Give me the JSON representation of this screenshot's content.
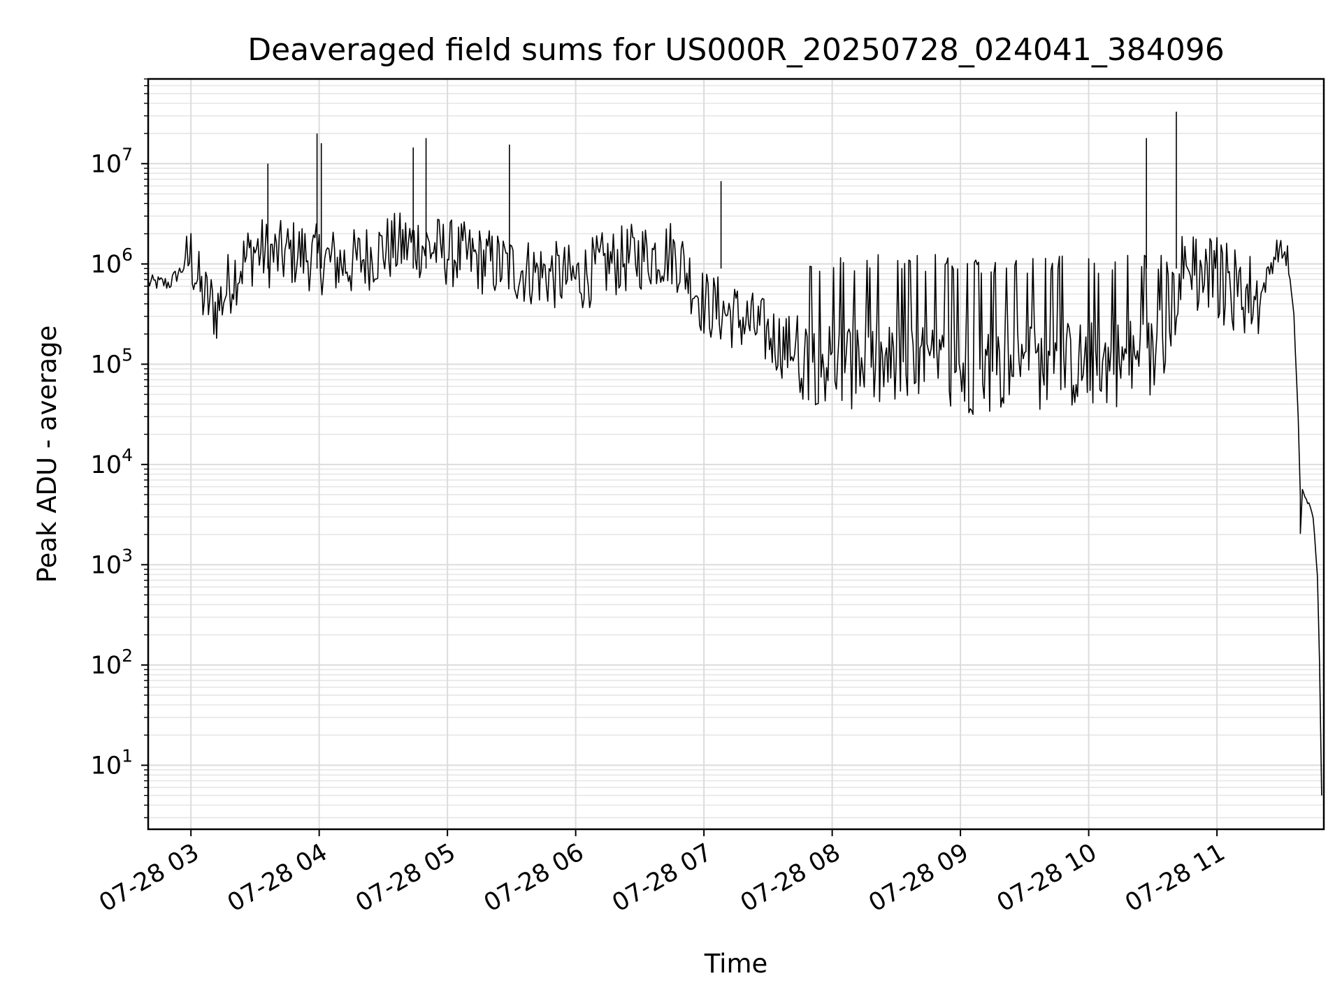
{
  "chart_data": {
    "type": "line",
    "title": "Deaveraged field sums for US000R_20250728_024041_384096",
    "xlabel": "Time",
    "ylabel": "Peak ADU - average",
    "x_range": [
      "2025-07-28 02:40",
      "2025-07-28 11:50"
    ],
    "y_scale": "log",
    "ylim": [
      2.3,
      70000000
    ],
    "grid": true,
    "line_color": "#000000",
    "x_ticks": [
      {
        "value": "2025-07-28 03:00",
        "label": "07-28 03"
      },
      {
        "value": "2025-07-28 04:00",
        "label": "07-28 04"
      },
      {
        "value": "2025-07-28 05:00",
        "label": "07-28 05"
      },
      {
        "value": "2025-07-28 06:00",
        "label": "07-28 06"
      },
      {
        "value": "2025-07-28 07:00",
        "label": "07-28 07"
      },
      {
        "value": "2025-07-28 08:00",
        "label": "07-28 08"
      },
      {
        "value": "2025-07-28 09:00",
        "label": "07-28 09"
      },
      {
        "value": "2025-07-28 10:00",
        "label": "07-28 10"
      },
      {
        "value": "2025-07-28 11:00",
        "label": "07-28 11"
      }
    ],
    "y_ticks": [
      {
        "value": 10,
        "base": "10",
        "exp": "1"
      },
      {
        "value": 100,
        "base": "10",
        "exp": "2"
      },
      {
        "value": 1000,
        "base": "10",
        "exp": "3"
      },
      {
        "value": 10000,
        "base": "10",
        "exp": "4"
      },
      {
        "value": 100000,
        "base": "10",
        "exp": "5"
      },
      {
        "value": 1000000,
        "base": "10",
        "exp": "6"
      },
      {
        "value": 10000000,
        "base": "10",
        "exp": "7"
      }
    ],
    "series": [
      {
        "points": [
          [
            "2025-07-28 02:40",
            650000
          ],
          [
            "2025-07-28 02:50",
            640000
          ],
          [
            "2025-07-28 02:56",
            900000
          ],
          [
            "2025-07-28 03:00",
            1200000
          ],
          [
            "2025-07-28 03:05",
            500000
          ],
          [
            "2025-07-28 03:12",
            350000
          ],
          [
            "2025-07-28 03:20",
            800000
          ],
          [
            "2025-07-28 03:30",
            1400000
          ],
          [
            "2025-07-28 03:40",
            1200000
          ],
          [
            "2025-07-28 03:50",
            1300000
          ],
          [
            "2025-07-28 04:00",
            1100000
          ],
          [
            "2025-07-28 04:15",
            1000000
          ],
          [
            "2025-07-28 04:30",
            1400000
          ],
          [
            "2025-07-28 04:45",
            1600000
          ],
          [
            "2025-07-28 05:00",
            1300000
          ],
          [
            "2025-07-28 05:15",
            1100000
          ],
          [
            "2025-07-28 05:30",
            900000
          ],
          [
            "2025-07-28 05:45",
            800000
          ],
          [
            "2025-07-28 06:00",
            700000
          ],
          [
            "2025-07-28 06:15",
            1000000
          ],
          [
            "2025-07-28 06:30",
            1200000
          ],
          [
            "2025-07-28 06:45",
            1300000
          ],
          [
            "2025-07-28 06:50",
            1000000
          ],
          [
            "2025-07-28 07:00",
            400000
          ],
          [
            "2025-07-28 07:15",
            300000
          ],
          [
            "2025-07-28 07:30",
            200000
          ],
          [
            "2025-07-28 07:45",
            120000
          ],
          [
            "2025-07-28 08:00",
            100000
          ],
          [
            "2025-07-28 08:30",
            90000
          ],
          [
            "2025-07-28 09:00",
            85000
          ],
          [
            "2025-07-28 09:30",
            95000
          ],
          [
            "2025-07-28 10:00",
            100000
          ],
          [
            "2025-07-28 10:30",
            110000
          ],
          [
            "2025-07-28 10:45",
            900000
          ],
          [
            "2025-07-28 11:00",
            700000
          ],
          [
            "2025-07-28 11:20",
            450000
          ],
          [
            "2025-07-28 11:28",
            1400000
          ],
          [
            "2025-07-28 11:33",
            1200000
          ],
          [
            "2025-07-28 11:36",
            300000
          ],
          [
            "2025-07-28 11:38",
            30000
          ],
          [
            "2025-07-28 11:39",
            5000
          ],
          [
            "2025-07-28 11:39",
            2000
          ],
          [
            "2025-07-28 11:40",
            5500
          ],
          [
            "2025-07-28 11:43",
            4000
          ],
          [
            "2025-07-28 11:45",
            3000
          ],
          [
            "2025-07-28 11:47",
            800
          ],
          [
            "2025-07-28 11:48",
            100
          ],
          [
            "2025-07-28 11:49",
            5
          ]
        ]
      }
    ],
    "spikes": [
      [
        "2025-07-28 03:36",
        10000000
      ],
      [
        "2025-07-28 03:59",
        20000000
      ],
      [
        "2025-07-28 04:01",
        16000000
      ],
      [
        "2025-07-28 04:44",
        14500000
      ],
      [
        "2025-07-28 04:50",
        18000000
      ],
      [
        "2025-07-28 05:29",
        15500000
      ],
      [
        "2025-07-28 07:08",
        6700000
      ],
      [
        "2025-07-28 10:27",
        18000000
      ],
      [
        "2025-07-28 10:41",
        33000000
      ]
    ]
  }
}
